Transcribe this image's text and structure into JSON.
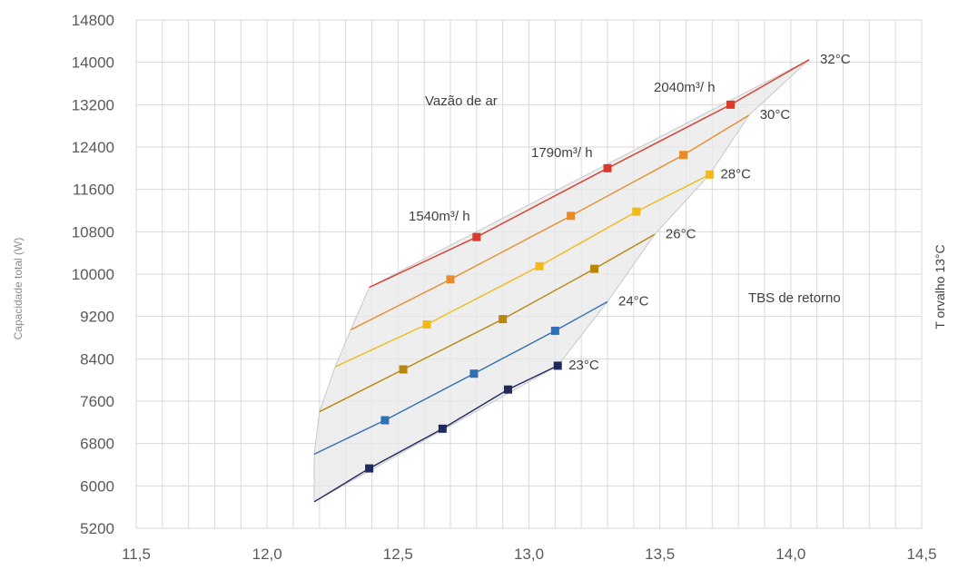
{
  "chart_data": {
    "type": "line",
    "ylabel": "Capacidade total (W)",
    "right_label": "T orvalho 13°C",
    "xlim": [
      11.5,
      14.5
    ],
    "ylim": [
      5200,
      14800
    ],
    "x_ticks": [
      "11,5",
      "12,0",
      "12,5",
      "13,0",
      "13,5",
      "14,0",
      "14,5"
    ],
    "x_tick_values": [
      11.5,
      12.0,
      12.5,
      13.0,
      13.5,
      14.0,
      14.5
    ],
    "y_ticks": [
      5200,
      6000,
      6800,
      7600,
      8400,
      9200,
      10000,
      10800,
      11600,
      12400,
      13200,
      14000,
      14800
    ],
    "x_minor_step": 0.1,
    "grid": true,
    "region_color": "#e8e8e8",
    "annotations": {
      "vazao": "Vazão de ar",
      "tbs": "TBS de retorno",
      "flow_1540": "1540m³/ h",
      "flow_1790": "1790m³/ h",
      "flow_2040": "2040m³/ h"
    },
    "series": [
      {
        "name": "23°C",
        "color": "#1f2a5c",
        "x": [
          12.18,
          12.39,
          12.67,
          12.92,
          13.11
        ],
        "y": [
          5700,
          6330,
          7080,
          7820,
          8270
        ],
        "marker_x": [
          12.39,
          12.67,
          12.92,
          13.11
        ],
        "marker_y": [
          6330,
          7080,
          7820,
          8270
        ]
      },
      {
        "name": "24°C",
        "color": "#2f6fb5",
        "x": [
          12.18,
          12.45,
          12.79,
          13.1,
          13.3
        ],
        "y": [
          6600,
          7240,
          8120,
          8930,
          9480
        ],
        "marker_x": [
          12.45,
          12.79,
          13.1
        ],
        "marker_y": [
          7240,
          8120,
          8930
        ]
      },
      {
        "name": "26°C",
        "color": "#b8860b",
        "x": [
          12.2,
          12.52,
          12.9,
          13.25,
          13.48
        ],
        "y": [
          7400,
          8200,
          9150,
          10100,
          10750
        ],
        "marker_x": [
          12.52,
          12.9,
          13.25
        ],
        "marker_y": [
          8200,
          9150,
          10100
        ]
      },
      {
        "name": "28°C",
        "color": "#f2b918",
        "x": [
          12.26,
          12.61,
          13.04,
          13.41,
          13.69
        ],
        "y": [
          8250,
          9050,
          10150,
          11180,
          11880
        ],
        "marker_x": [
          12.61,
          13.04,
          13.41,
          13.69
        ],
        "marker_y": [
          9050,
          10150,
          11180,
          11880
        ]
      },
      {
        "name": "30°C",
        "color": "#e88b2a",
        "x": [
          12.32,
          12.7,
          13.16,
          13.59,
          13.84
        ],
        "y": [
          8950,
          9900,
          11100,
          12250,
          13000
        ],
        "marker_x": [
          12.7,
          13.16,
          13.59
        ],
        "marker_y": [
          9900,
          11100,
          12250
        ]
      },
      {
        "name": "32°C",
        "color": "#d93a2a",
        "x": [
          12.39,
          12.8,
          13.3,
          13.77,
          14.07
        ],
        "y": [
          9750,
          10700,
          12000,
          13200,
          14050
        ],
        "marker_x": [
          12.8,
          13.3,
          13.77
        ],
        "marker_y": [
          10700,
          12000,
          13200
        ]
      }
    ]
  }
}
